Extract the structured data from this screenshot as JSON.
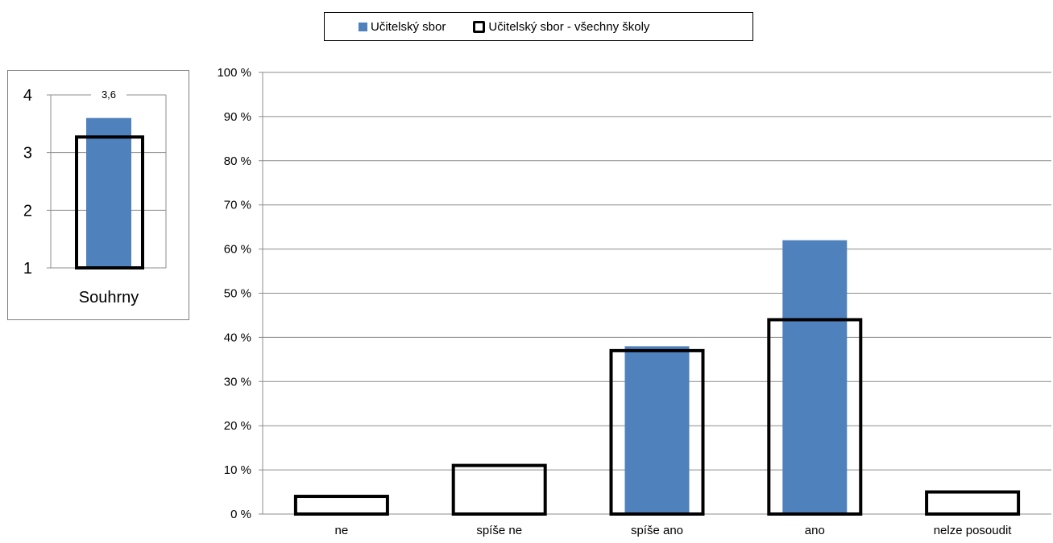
{
  "legend": {
    "series_a": "Učitelský sbor",
    "series_b": "Učitelský sbor - všechny školy"
  },
  "colors": {
    "series_a": "#4f81bd",
    "series_b_outline": "#000000",
    "grid": "#8c8c8c"
  },
  "chart_data": [
    {
      "type": "bar",
      "categories": [
        "Souhrny"
      ],
      "series": [
        {
          "name": "Učitelský sbor",
          "values": [
            3.6
          ],
          "style": "filled"
        },
        {
          "name": "Učitelský sbor - všechny školy",
          "values": [
            3.27
          ],
          "style": "outline"
        }
      ],
      "data_labels": [
        "3,6"
      ],
      "yticks": [
        "1",
        "2",
        "3",
        "4"
      ],
      "ylim": [
        1,
        4
      ],
      "grid": true
    },
    {
      "type": "bar",
      "categories": [
        "ne",
        "spíše ne",
        "spíše ano",
        "ano",
        "nelze posoudit"
      ],
      "series": [
        {
          "name": "Učitelský sbor",
          "values": [
            0,
            0,
            38,
            62,
            0
          ],
          "style": "filled"
        },
        {
          "name": "Učitelský sbor - všechny školy",
          "values": [
            4,
            11,
            37,
            44,
            5
          ],
          "style": "outline"
        }
      ],
      "yticks": [
        "0 %",
        "10 %",
        "20 %",
        "30 %",
        "40 %",
        "50 %",
        "60 %",
        "70 %",
        "80 %",
        "90 %",
        "100 %"
      ],
      "ylim": [
        0,
        100
      ],
      "grid": true,
      "legend_position": "top"
    }
  ]
}
